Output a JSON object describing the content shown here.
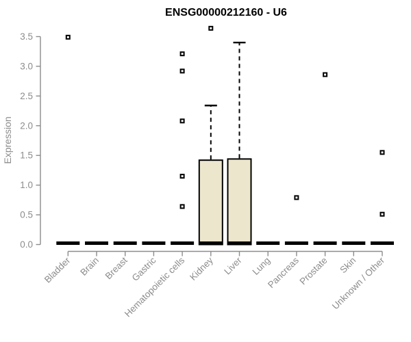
{
  "chart_data": {
    "type": "box",
    "title": "ENSG00000212160 - U6",
    "xlabel": "",
    "ylabel": "Expression",
    "ylim": [
      0,
      3.5
    ],
    "yticks": [
      "0.0",
      "0.5",
      "1.0",
      "1.5",
      "2.0",
      "2.5",
      "3.0",
      "3.5"
    ],
    "grid": false,
    "legend": "none",
    "x_tick_angle_deg": 45,
    "categories": [
      "Bladder",
      "Brain",
      "Breast",
      "Gastric",
      "Hematopoietic cells",
      "Kidney",
      "Liver",
      "Lung",
      "Pancreas",
      "Prostate",
      "Skin",
      "Unknown / Other"
    ],
    "series": [
      {
        "category": "Bladder",
        "q1": 0,
        "median": 0,
        "q3": 0,
        "whisker_low": 0,
        "whisker_high": 0,
        "outliers": [
          3.49
        ]
      },
      {
        "category": "Brain",
        "q1": 0,
        "median": 0,
        "q3": 0,
        "whisker_low": 0,
        "whisker_high": 0,
        "outliers": []
      },
      {
        "category": "Breast",
        "q1": 0,
        "median": 0,
        "q3": 0,
        "whisker_low": 0,
        "whisker_high": 0,
        "outliers": []
      },
      {
        "category": "Gastric",
        "q1": 0,
        "median": 0,
        "q3": 0,
        "whisker_low": 0,
        "whisker_high": 0,
        "outliers": []
      },
      {
        "category": "Hematopoietic cells",
        "q1": 0,
        "median": 0,
        "q3": 0,
        "whisker_low": 0,
        "whisker_high": 0,
        "outliers": [
          3.21,
          2.92,
          2.08,
          1.15,
          0.64
        ]
      },
      {
        "category": "Kidney",
        "q1": 0,
        "median": 0,
        "q3": 1.42,
        "whisker_low": 0,
        "whisker_high": 2.34,
        "outliers": [
          3.64
        ]
      },
      {
        "category": "Liver",
        "q1": 0,
        "median": 0,
        "q3": 1.44,
        "whisker_low": 0,
        "whisker_high": 3.4,
        "outliers": []
      },
      {
        "category": "Lung",
        "q1": 0,
        "median": 0,
        "q3": 0,
        "whisker_low": 0,
        "whisker_high": 0,
        "outliers": []
      },
      {
        "category": "Pancreas",
        "q1": 0,
        "median": 0,
        "q3": 0,
        "whisker_low": 0,
        "whisker_high": 0,
        "outliers": [
          0.79
        ]
      },
      {
        "category": "Prostate",
        "q1": 0,
        "median": 0,
        "q3": 0,
        "whisker_low": 0,
        "whisker_high": 0,
        "outliers": [
          2.86
        ]
      },
      {
        "category": "Skin",
        "q1": 0,
        "median": 0,
        "q3": 0,
        "whisker_low": 0,
        "whisker_high": 0,
        "outliers": []
      },
      {
        "category": "Unknown / Other",
        "q1": 0,
        "median": 0,
        "q3": 0,
        "whisker_low": 0,
        "whisker_high": 0,
        "outliers": [
          1.55,
          0.51
        ]
      }
    ],
    "colors": {
      "title": "#000000",
      "axis": "#8C8C8C",
      "tick_label": "#8C8C8C",
      "box_fill": "#ECE6CD",
      "box_border": "#000000",
      "median": "#000000",
      "outlier_fill": "#FFFFFF",
      "background": "#FFFFFF"
    }
  }
}
